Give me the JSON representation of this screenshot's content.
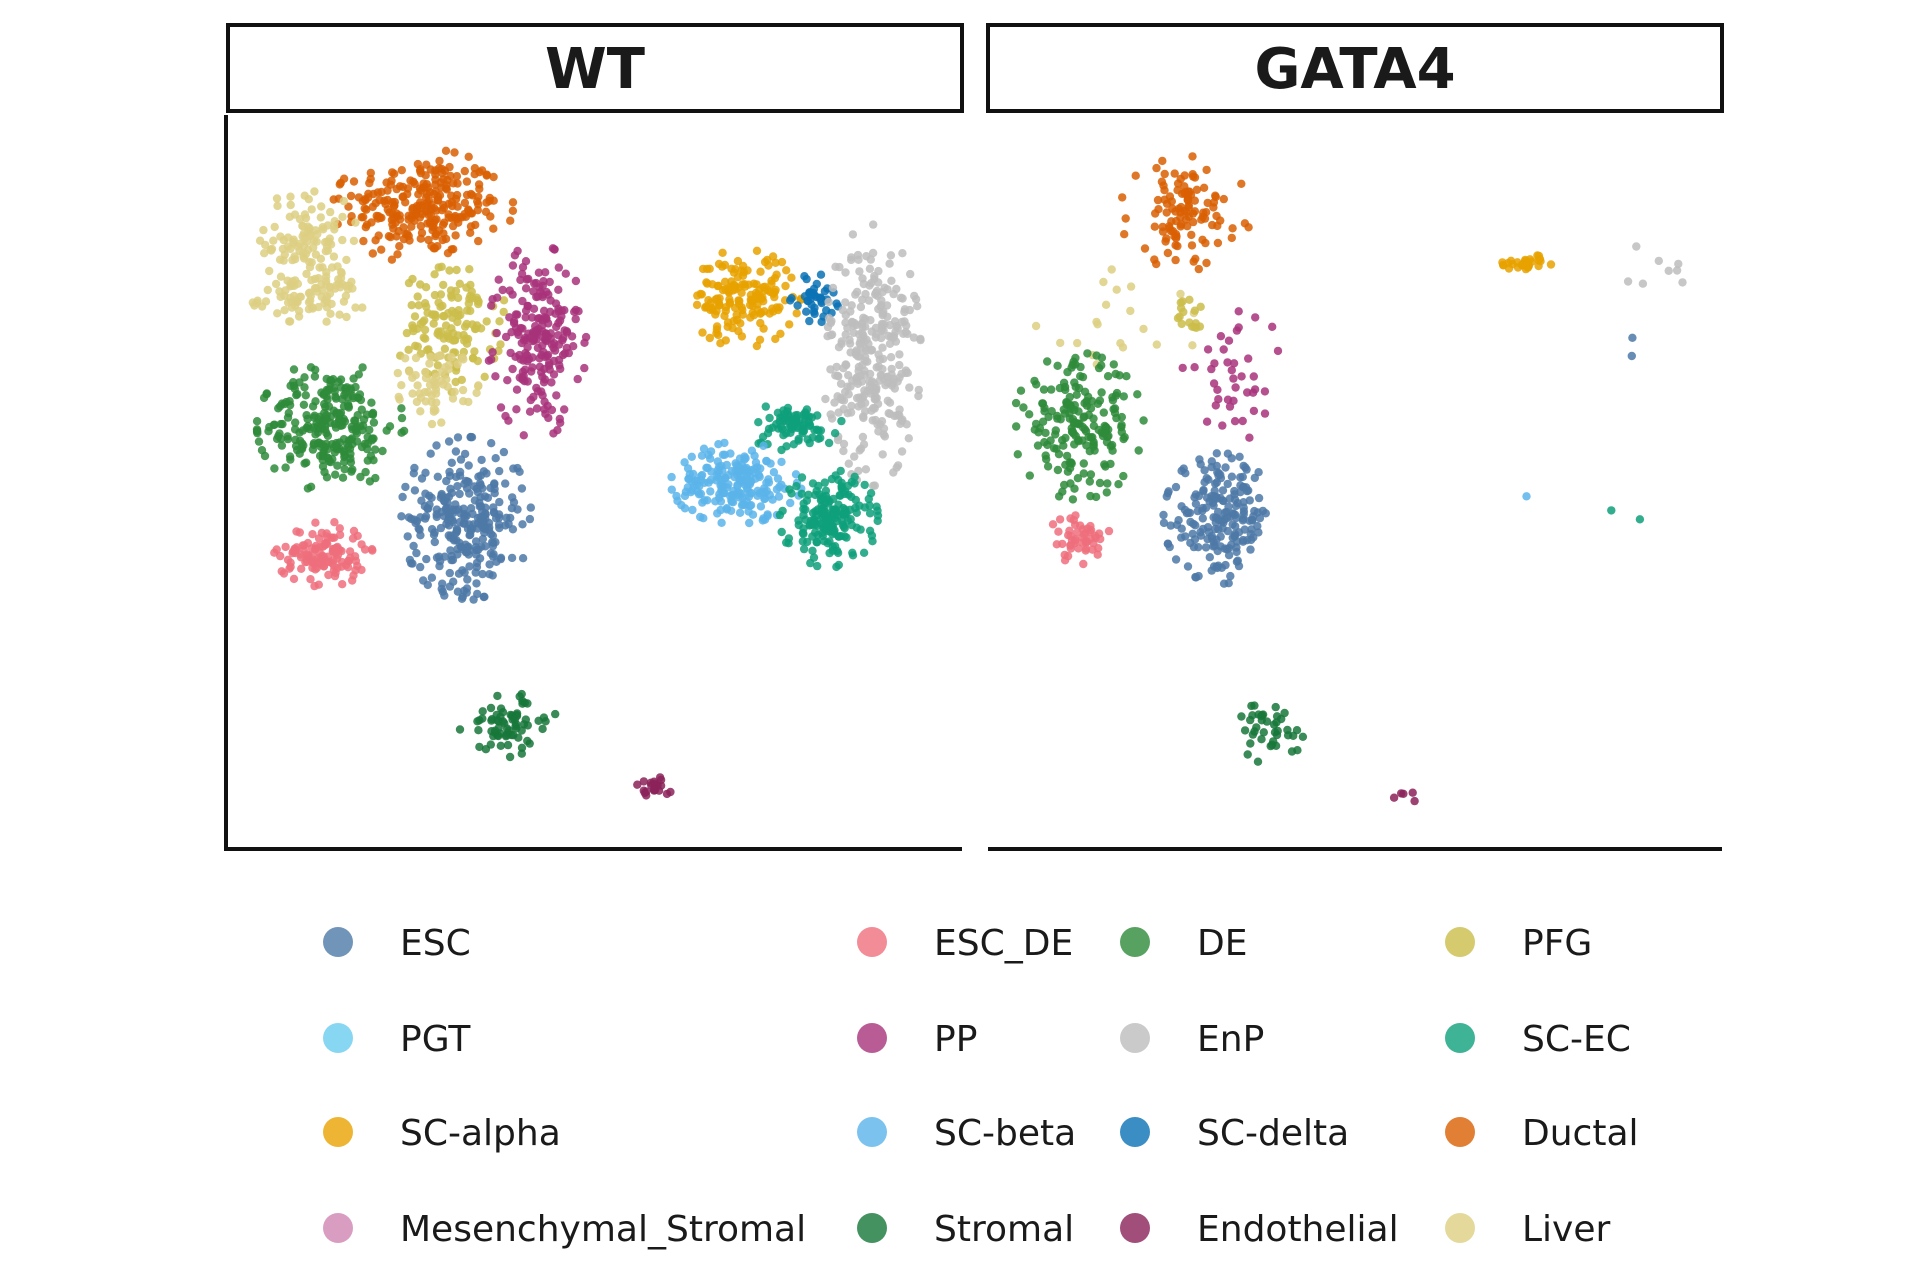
{
  "chart_data": {
    "type": "scatter",
    "panels": [
      {
        "title": "WT"
      },
      {
        "title": "GATA4"
      }
    ],
    "xlabel": "",
    "ylabel": "",
    "axes_ticks": "none",
    "grid": false,
    "legend": {
      "placement": "bottom",
      "columns": 4,
      "entries": [
        {
          "name": "ESC",
          "color": "#4E79A7"
        },
        {
          "name": "ESC_DE",
          "color": "#EF6F7D"
        },
        {
          "name": "DE",
          "color": "#2E8B3A"
        },
        {
          "name": "PFG",
          "color": "#CBBD4A"
        },
        {
          "name": "PGT",
          "color": "#6ACDEF"
        },
        {
          "name": "PP",
          "color": "#A8337A"
        },
        {
          "name": "EnP",
          "color": "#BDBDBD"
        },
        {
          "name": "SC-EC",
          "color": "#0EA07A"
        },
        {
          "name": "SC-alpha",
          "color": "#E8A200"
        },
        {
          "name": "SC-beta",
          "color": "#5AB4EA"
        },
        {
          "name": "SC-delta",
          "color": "#0A72B5"
        },
        {
          "name": "Ductal",
          "color": "#D95F02"
        },
        {
          "name": "Mesenchymal_Stromal",
          "color": "#CF85B2"
        },
        {
          "name": "Stromal",
          "color": "#17773A"
        },
        {
          "name": "Endothelial",
          "color": "#8B2259"
        },
        {
          "name": "Liver",
          "color": "#DDCF82"
        }
      ]
    },
    "xlim": [
      0,
      100
    ],
    "ylim": [
      0,
      100
    ],
    "clusters": {
      "WT": [
        {
          "label": "Ductal",
          "cx": 26,
          "cy": 89,
          "rx": 11,
          "ry": 7,
          "n": 260
        },
        {
          "label": "Liver",
          "cx": 10,
          "cy": 84,
          "rx": 6,
          "ry": 7,
          "n": 110
        },
        {
          "label": "Liver",
          "cx": 10,
          "cy": 76,
          "rx": 7,
          "ry": 3,
          "n": 80
        },
        {
          "label": "PFG",
          "cx": 30,
          "cy": 72,
          "rx": 7,
          "ry": 8,
          "n": 140
        },
        {
          "label": "Liver",
          "cx": 28,
          "cy": 64,
          "rx": 5,
          "ry": 5,
          "n": 60
        },
        {
          "label": "PP",
          "cx": 42,
          "cy": 70,
          "rx": 6,
          "ry": 12,
          "n": 210
        },
        {
          "label": "DE",
          "cx": 13,
          "cy": 58,
          "rx": 9,
          "ry": 8,
          "n": 260
        },
        {
          "label": "ESC",
          "cx": 32,
          "cy": 45,
          "rx": 8,
          "ry": 10,
          "n": 280
        },
        {
          "label": "ESC_DE",
          "cx": 12,
          "cy": 40,
          "rx": 6,
          "ry": 4,
          "n": 130
        },
        {
          "label": "SC-alpha",
          "cx": 71,
          "cy": 76,
          "rx": 7,
          "ry": 6,
          "n": 160
        },
        {
          "label": "SC-delta",
          "cx": 81,
          "cy": 76,
          "rx": 3,
          "ry": 3,
          "n": 40
        },
        {
          "label": "EnP",
          "cx": 89,
          "cy": 68,
          "rx": 6,
          "ry": 16,
          "n": 300
        },
        {
          "label": "SC-EC",
          "cx": 78,
          "cy": 58,
          "rx": 6,
          "ry": 3,
          "n": 80
        },
        {
          "label": "SC-beta",
          "cx": 70,
          "cy": 50,
          "rx": 8,
          "ry": 5,
          "n": 200
        },
        {
          "label": "SC-EC",
          "cx": 83,
          "cy": 45,
          "rx": 6,
          "ry": 6,
          "n": 180
        },
        {
          "label": "Stromal",
          "cx": 38,
          "cy": 16,
          "rx": 6,
          "ry": 4,
          "n": 70
        },
        {
          "label": "Endothelial",
          "cx": 58,
          "cy": 7,
          "rx": 2.5,
          "ry": 1.5,
          "n": 22
        }
      ],
      "GATA4": [
        {
          "label": "Ductal",
          "cx": 26,
          "cy": 88,
          "rx": 8,
          "ry": 7,
          "n": 110
        },
        {
          "label": "Liver",
          "cx": 16,
          "cy": 72,
          "rx": 10,
          "ry": 8,
          "n": 20
        },
        {
          "label": "PFG",
          "cx": 27,
          "cy": 74,
          "rx": 3,
          "ry": 4,
          "n": 16
        },
        {
          "label": "PP",
          "cx": 33,
          "cy": 65,
          "rx": 7,
          "ry": 8,
          "n": 40
        },
        {
          "label": "DE",
          "cx": 11,
          "cy": 58,
          "rx": 8,
          "ry": 9,
          "n": 190
        },
        {
          "label": "ESC",
          "cx": 31,
          "cy": 45,
          "rx": 7,
          "ry": 8,
          "n": 200
        },
        {
          "label": "ESC_DE",
          "cx": 11,
          "cy": 42,
          "rx": 4,
          "ry": 3,
          "n": 50
        },
        {
          "label": "SC-alpha",
          "cx": 74,
          "cy": 81,
          "rx": 3,
          "ry": 1,
          "n": 30
        },
        {
          "label": "EnP",
          "cx": 91,
          "cy": 80,
          "rx": 5,
          "ry": 3,
          "n": 8
        },
        {
          "label": "ESC",
          "cx": 89,
          "cy": 70,
          "rx": 1,
          "ry": 2,
          "n": 2
        },
        {
          "label": "SC-beta",
          "cx": 74,
          "cy": 48,
          "rx": 0.5,
          "ry": 0.5,
          "n": 1
        },
        {
          "label": "SC-EC",
          "cx": 88,
          "cy": 46,
          "rx": 6,
          "ry": 1,
          "n": 2
        },
        {
          "label": "Stromal",
          "cx": 38,
          "cy": 15,
          "rx": 4,
          "ry": 4,
          "n": 40
        },
        {
          "label": "Endothelial",
          "cx": 57,
          "cy": 6,
          "rx": 1.5,
          "ry": 1,
          "n": 5
        }
      ]
    }
  }
}
